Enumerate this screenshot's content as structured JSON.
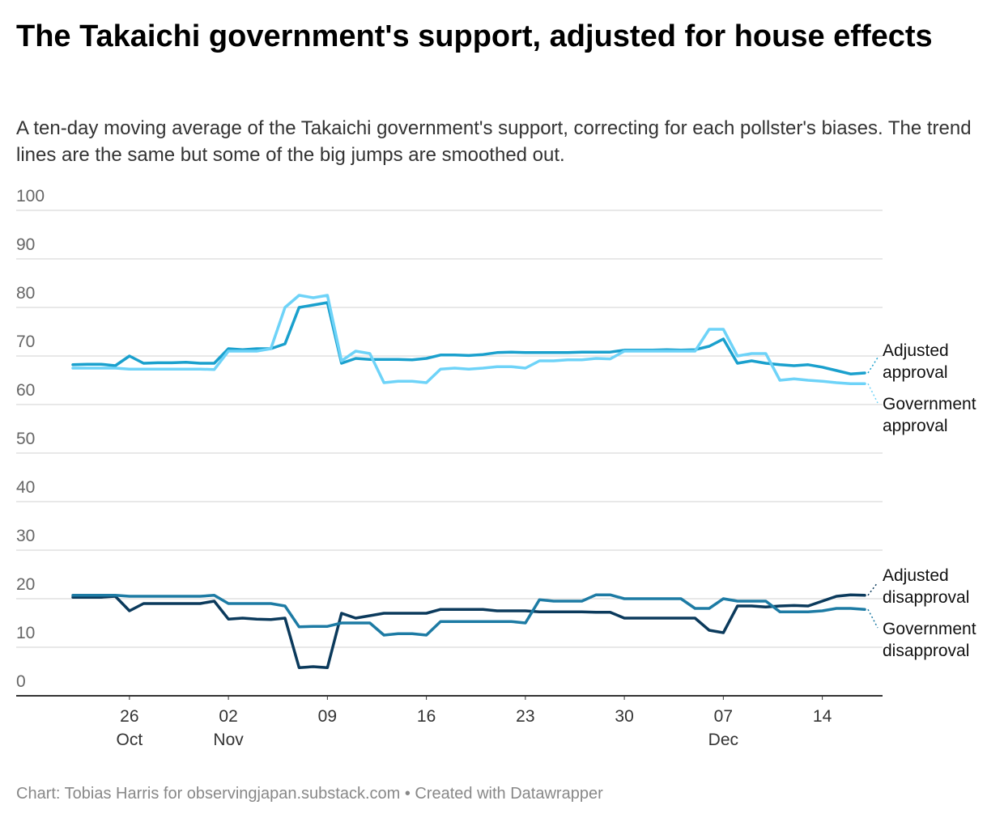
{
  "chart_data": {
    "type": "line",
    "title": "The Takaichi government's support, adjusted for house effects",
    "subtitle": "A ten-day moving average of the Takaichi government's support, correcting for each pollster's biases. The trend lines are the same but some of the big jumps are smoothed out.",
    "footer": "Chart: Tobias Harris for observingjapan.substack.com • Created with Datawrapper",
    "x": [
      "Oct 22",
      "Oct 23",
      "Oct 24",
      "Oct 25",
      "Oct 26",
      "Oct 27",
      "Oct 28",
      "Oct 29",
      "Oct 30",
      "Oct 31",
      "Nov 1",
      "Nov 2",
      "Nov 3",
      "Nov 4",
      "Nov 5",
      "Nov 6",
      "Nov 7",
      "Nov 8",
      "Nov 9",
      "Nov 10",
      "Nov 11",
      "Nov 12",
      "Nov 13",
      "Nov 14",
      "Nov 15",
      "Nov 16",
      "Nov 17",
      "Nov 18",
      "Nov 19",
      "Nov 20",
      "Nov 21",
      "Nov 22",
      "Nov 23",
      "Nov 24",
      "Nov 25",
      "Nov 26",
      "Nov 27",
      "Nov 28",
      "Nov 29",
      "Nov 30",
      "Dec 1",
      "Dec 2",
      "Dec 3",
      "Dec 4",
      "Dec 5",
      "Dec 6",
      "Dec 7",
      "Dec 8",
      "Dec 9",
      "Dec 10",
      "Dec 11",
      "Dec 12",
      "Dec 13",
      "Dec 14",
      "Dec 15",
      "Dec 16",
      "Dec 17"
    ],
    "xticks": [
      {
        "value": "Oct 26",
        "label": "26\nOct"
      },
      {
        "value": "Nov 2",
        "label": "02\nNov"
      },
      {
        "value": "Nov 9",
        "label": "09"
      },
      {
        "value": "Nov 16",
        "label": "16"
      },
      {
        "value": "Nov 23",
        "label": "23"
      },
      {
        "value": "Nov 30",
        "label": "30"
      },
      {
        "value": "Dec 7",
        "label": "07\nDec"
      },
      {
        "value": "Dec 14",
        "label": "14"
      }
    ],
    "ylim": [
      0,
      100
    ],
    "yticks": [
      0,
      10,
      20,
      30,
      40,
      50,
      60,
      70,
      80,
      90,
      100
    ],
    "grid": true,
    "series": [
      {
        "name": "Adjusted approval",
        "color": "#1aa0cd",
        "values": [
          68.2,
          68.3,
          68.3,
          68,
          70,
          68.5,
          68.6,
          68.6,
          68.7,
          68.5,
          68.5,
          71.5,
          71.3,
          71.5,
          71.5,
          72.5,
          80,
          80.5,
          81,
          68.5,
          69.5,
          69.3,
          69.3,
          69.3,
          69.2,
          69.5,
          70.2,
          70.2,
          70.1,
          70.3,
          70.7,
          70.8,
          70.7,
          70.7,
          70.7,
          70.7,
          70.8,
          70.8,
          70.8,
          71.2,
          71.2,
          71.2,
          71.3,
          71.2,
          71.3,
          72,
          73.5,
          68.5,
          69,
          68.5,
          68.2,
          68,
          68.2,
          67.7,
          67,
          66.3,
          66.5
        ]
      },
      {
        "name": "Government approval",
        "color": "#6ed3f8",
        "values": [
          67.5,
          67.5,
          67.5,
          67.5,
          67.3,
          67.3,
          67.3,
          67.3,
          67.3,
          67.3,
          67.2,
          71,
          71,
          71,
          71.5,
          80,
          82.5,
          82,
          82.5,
          69,
          71,
          70.5,
          64.5,
          64.8,
          64.8,
          64.5,
          67.3,
          67.5,
          67.3,
          67.5,
          67.8,
          67.8,
          67.5,
          69,
          69,
          69.2,
          69.2,
          69.5,
          69.4,
          71,
          71,
          71,
          71,
          71,
          71,
          75.5,
          75.5,
          70,
          70.5,
          70.5,
          65,
          65.3,
          65,
          64.8,
          64.5,
          64.3,
          64.3
        ]
      },
      {
        "name": "Adjusted disapproval",
        "color": "#0b3a5c",
        "values": [
          20.3,
          20.3,
          20.3,
          20.5,
          17.5,
          19,
          19,
          19,
          19,
          19,
          19.5,
          15.8,
          16,
          15.8,
          15.7,
          16,
          5.8,
          6,
          5.8,
          17,
          16,
          16.5,
          17,
          17,
          17,
          17,
          17.8,
          17.8,
          17.8,
          17.8,
          17.5,
          17.5,
          17.5,
          17.3,
          17.3,
          17.3,
          17.3,
          17.2,
          17.2,
          16,
          16,
          16,
          16,
          16,
          16,
          13.5,
          13,
          18.5,
          18.5,
          18.3,
          18.5,
          18.6,
          18.5,
          19.5,
          20.5,
          20.8,
          20.7
        ]
      },
      {
        "name": "Government disapproval",
        "color": "#1d7ba4",
        "values": [
          20.7,
          20.7,
          20.7,
          20.7,
          20.5,
          20.5,
          20.5,
          20.5,
          20.5,
          20.5,
          20.7,
          19,
          19,
          19,
          19,
          18.5,
          14.2,
          14.3,
          14.3,
          15,
          15,
          15,
          12.5,
          12.8,
          12.8,
          12.5,
          15.3,
          15.3,
          15.3,
          15.3,
          15.3,
          15.3,
          15,
          19.8,
          19.5,
          19.5,
          19.5,
          20.8,
          20.8,
          20,
          20,
          20,
          20,
          20,
          18,
          18,
          20,
          19.5,
          19.5,
          19.5,
          17.3,
          17.3,
          17.3,
          17.5,
          18,
          18,
          17.8
        ]
      }
    ]
  }
}
